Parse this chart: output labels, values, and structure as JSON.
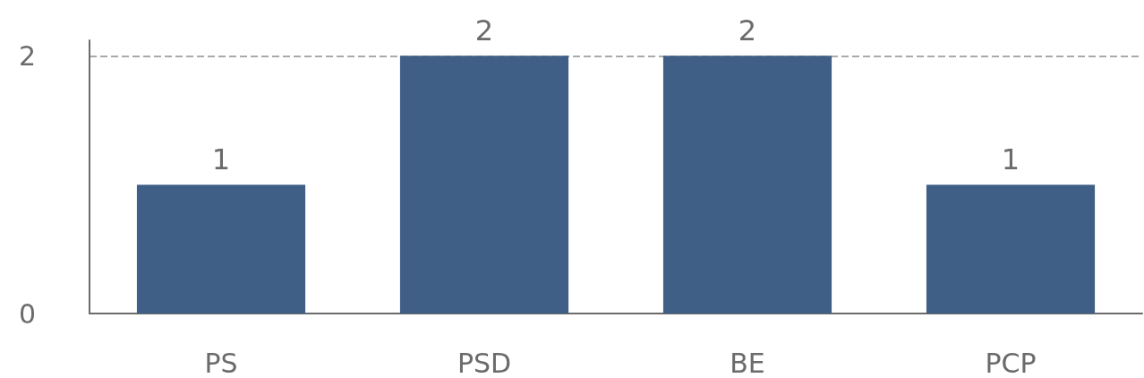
{
  "chart_data": {
    "type": "bar",
    "categories": [
      "PS",
      "PSD",
      "BE",
      "PCP"
    ],
    "values": [
      1,
      2,
      2,
      1
    ],
    "color": "#3f5f86",
    "ylim": [
      0,
      2.12
    ],
    "yticks": [
      0,
      2
    ],
    "grid": "y",
    "data_labels": true
  }
}
